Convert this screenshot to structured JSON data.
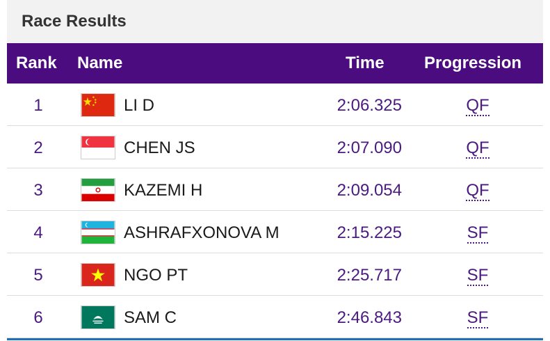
{
  "header": {
    "title": "Race Results"
  },
  "table": {
    "columns": [
      "Rank",
      "Name",
      "Time",
      "Progression"
    ],
    "rows": [
      [
        "1",
        "LI D",
        "2:06.325",
        "QF"
      ],
      [
        "2",
        "CHEN JS",
        "2:07.090",
        "QF"
      ],
      [
        "3",
        "KAZEMI H",
        "2:09.054",
        "QF"
      ],
      [
        "4",
        "ASHRAFXONOVA M",
        "2:15.225",
        "SF"
      ],
      [
        "5",
        "NGO PT",
        "2:25.717",
        "SF"
      ],
      [
        "6",
        "SAM C",
        "2:46.843",
        "SF"
      ]
    ]
  }
}
